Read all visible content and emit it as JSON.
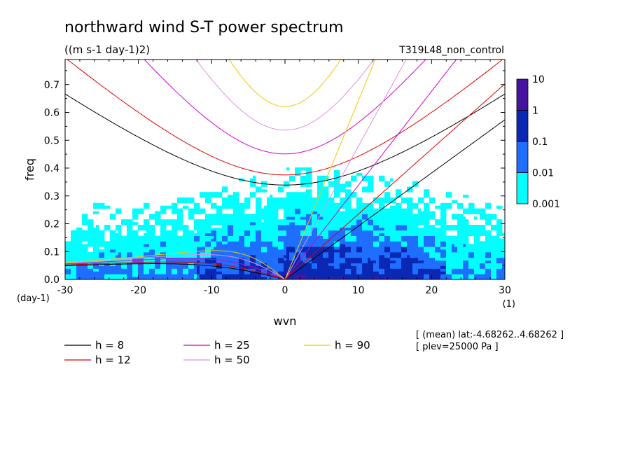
{
  "chart_data": {
    "type": "heatmap",
    "title": "northward wind S-T power spectrum",
    "units": "((m s-1 day-1)2)",
    "run_label": "T319L48_non_control",
    "xlabel": "wvn",
    "ylabel": "freq",
    "x_unit": "(1)",
    "y_unit": "(day-1)",
    "xlim": [
      -30,
      30
    ],
    "ylim": [
      0,
      0.79
    ],
    "x_ticks": [
      -30,
      -20,
      -10,
      0,
      10,
      20,
      30
    ],
    "x_tick_labels": [
      "-30",
      "-20",
      "-10",
      "0",
      "10",
      "20",
      "30"
    ],
    "y_ticks": [
      0,
      0.1,
      0.2,
      0.3,
      0.4,
      0.5,
      0.6,
      0.7
    ],
    "y_tick_labels": [
      "0.0",
      "0.1",
      "0.2",
      "0.3",
      "0.4",
      "0.5",
      "0.6",
      "0.7"
    ],
    "colorbar": {
      "levels": [
        "0.001",
        "0.01",
        "0.1",
        "1",
        "10"
      ],
      "colors": [
        "#00ffff",
        "#1e6eff",
        "#0a28b4",
        "#4614a0"
      ]
    },
    "dispersion_curves": [
      {
        "h": 8,
        "color": "#000000"
      },
      {
        "h": 12,
        "color": "#e00000"
      },
      {
        "h": 25,
        "color": "#d000c8"
      },
      {
        "h": 50,
        "color": "#e090e0"
      },
      {
        "h": 90,
        "color": "#f0c800"
      }
    ],
    "legend": {
      "items": [
        {
          "label": "h =  8",
          "color": "#000000"
        },
        {
          "label": "h = 12",
          "color": "#e00000"
        },
        {
          "label": "h = 25",
          "color": "#d000c8"
        },
        {
          "label": "h = 50",
          "color": "#e090e0"
        },
        {
          "label": "h = 90",
          "color": "#f0c800"
        }
      ]
    },
    "annotations": [
      "[ (mean) lat:-4.68262..4.68262 ]",
      "[ plev=25000 Pa ]"
    ]
  }
}
